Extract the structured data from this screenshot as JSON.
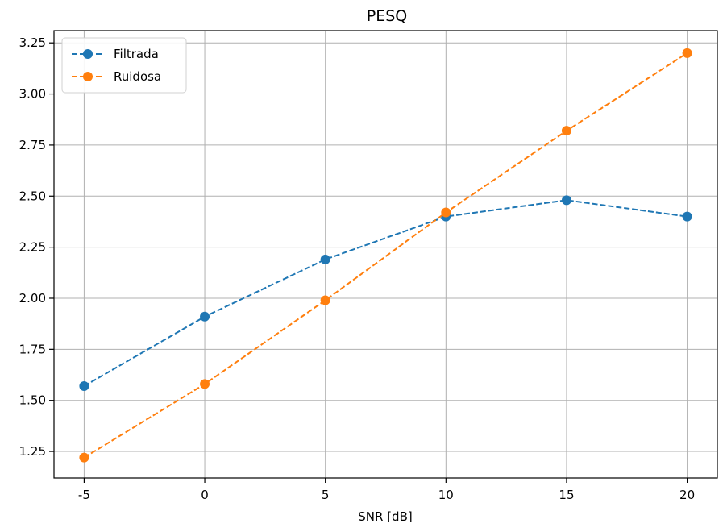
{
  "chart_data": {
    "type": "line",
    "title": "PESQ",
    "xlabel": "SNR [dB]",
    "ylabel": "",
    "x": [
      -5,
      0,
      5,
      10,
      15,
      20
    ],
    "x_tick_labels": [
      "-5",
      "0",
      "5",
      "10",
      "15",
      "20"
    ],
    "y_ticks": [
      1.25,
      1.5,
      1.75,
      2.0,
      2.25,
      2.5,
      2.75,
      3.0,
      3.25
    ],
    "y_tick_labels": [
      "1.25",
      "1.50",
      "1.75",
      "2.00",
      "2.25",
      "2.50",
      "2.75",
      "3.00",
      "3.25"
    ],
    "xlim": [
      -6.25,
      21.25
    ],
    "ylim": [
      1.12,
      3.31
    ],
    "grid": true,
    "legend_position": "top-left",
    "series": [
      {
        "name": "Filtrada",
        "color": "#1f77b4",
        "line_style": "dashed",
        "marker": "circle",
        "values": [
          1.57,
          1.91,
          2.19,
          2.4,
          2.48,
          2.4
        ]
      },
      {
        "name": "Ruidosa",
        "color": "#ff7f0e",
        "line_style": "dashed",
        "marker": "circle",
        "values": [
          1.22,
          1.58,
          1.99,
          2.42,
          2.82,
          3.2
        ]
      }
    ]
  }
}
